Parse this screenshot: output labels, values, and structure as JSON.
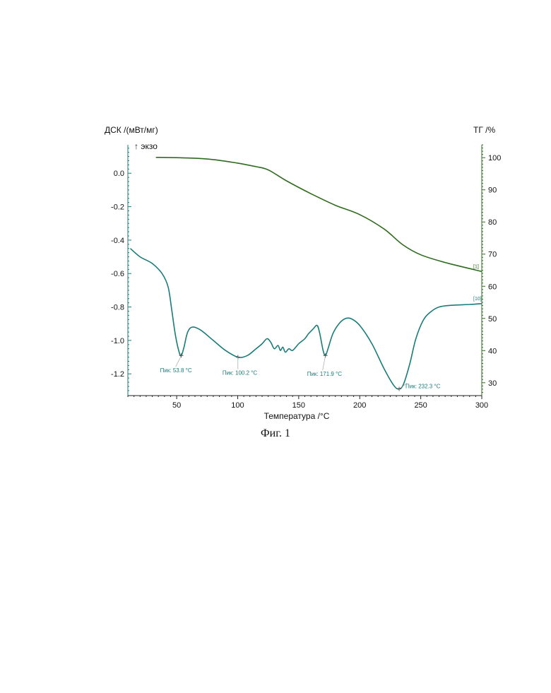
{
  "chart_data": {
    "type": "line",
    "xlabel": "Температура /°C",
    "y_left_label": "ДСК /(мВт/мг)",
    "y_left_note": "↑ экзо",
    "y_right_label": "ТГ /%",
    "xlim": [
      10,
      300
    ],
    "y_left_lim": [
      -1.33,
      0.17
    ],
    "y_right_lim": [
      26,
      104
    ],
    "x_ticks": [
      50,
      100,
      150,
      200,
      250,
      300
    ],
    "y_left_ticks": [
      0.0,
      -0.2,
      -0.4,
      -0.6,
      -0.8,
      -1.0,
      -1.2
    ],
    "y_left_tick_labels": [
      "0.0",
      "-0.2",
      "-0.4",
      "-0.6",
      "-0.8",
      "-1.0",
      "-1.2"
    ],
    "y_right_ticks": [
      100,
      90,
      80,
      70,
      60,
      50,
      40,
      30
    ],
    "series": [
      {
        "tag": "[1]",
        "axis": "right",
        "color": "#2f6b1e",
        "x": [
          33,
          60,
          80,
          100,
          115,
          125,
          140,
          160,
          180,
          200,
          220,
          235,
          250,
          270,
          300
        ],
        "values": [
          100.1,
          99.9,
          99.4,
          98.3,
          97.2,
          96.2,
          92.8,
          88.8,
          85.2,
          82.3,
          77.8,
          73.0,
          69.8,
          67.4,
          64.6
        ]
      },
      {
        "tag": "[10]",
        "axis": "left",
        "color": "#1a7b7b",
        "x": [
          12,
          20,
          30,
          38,
          43,
          46,
          49,
          52,
          53.8,
          56,
          59,
          63,
          70,
          80,
          90,
          100.2,
          108,
          115,
          120,
          124,
          127,
          130,
          133,
          135,
          137,
          139,
          142,
          145,
          150,
          155,
          158,
          162,
          165,
          167,
          170,
          171.9,
          174,
          178,
          183,
          188,
          193,
          200,
          210,
          220,
          228,
          232.3,
          236,
          241,
          246,
          252,
          258,
          265,
          275,
          290,
          300
        ],
        "values": [
          -0.45,
          -0.5,
          -0.54,
          -0.6,
          -0.68,
          -0.82,
          -0.97,
          -1.07,
          -1.09,
          -1.04,
          -0.95,
          -0.92,
          -0.94,
          -1.0,
          -1.06,
          -1.1,
          -1.09,
          -1.05,
          -1.02,
          -0.99,
          -1.01,
          -1.05,
          -1.03,
          -1.06,
          -1.04,
          -1.07,
          -1.05,
          -1.06,
          -1.02,
          -0.99,
          -0.96,
          -0.93,
          -0.91,
          -0.95,
          -1.06,
          -1.09,
          -1.05,
          -0.96,
          -0.9,
          -0.87,
          -0.87,
          -0.91,
          -1.02,
          -1.17,
          -1.27,
          -1.29,
          -1.26,
          -1.14,
          -0.99,
          -0.88,
          -0.83,
          -0.8,
          -0.79,
          -0.785,
          -0.78
        ]
      }
    ],
    "annotations": [
      {
        "label": "Пик: 53.8 °C",
        "x": 53.8,
        "y": -1.09
      },
      {
        "label": "Пик: 100.2 °C",
        "x": 100.2,
        "y": -1.1
      },
      {
        "label": "Пик: 171.9 °C",
        "x": 171.9,
        "y": -1.09
      },
      {
        "label": "Пик: 232.3 °C",
        "x": 232.3,
        "y": -1.29
      }
    ]
  },
  "caption": "Фиг. 1"
}
